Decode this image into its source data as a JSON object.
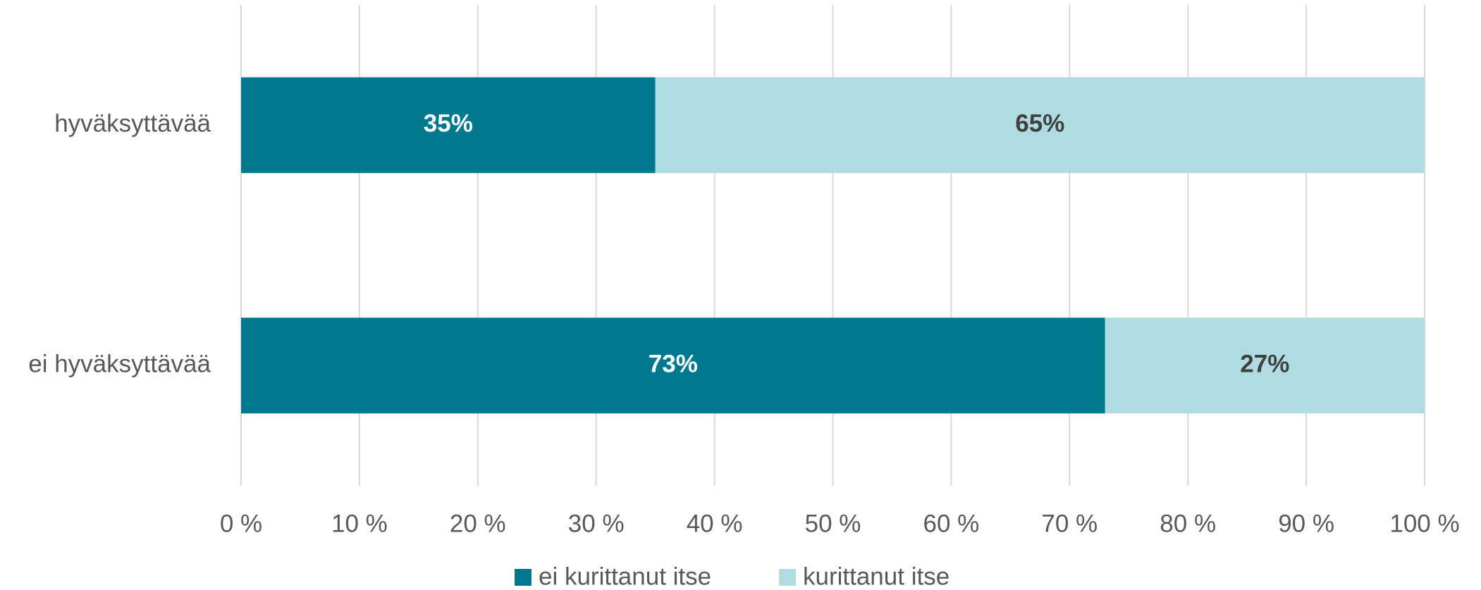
{
  "chart_data": {
    "type": "stacked_barh",
    "categories": [
      "hyväksyttävää",
      "ei hyväksyttävää"
    ],
    "series": [
      {
        "name": "ei kurittanut itse",
        "color": "#00788e",
        "values": [
          35,
          73
        ],
        "value_labels": [
          "35%",
          "73%"
        ]
      },
      {
        "name": "kurittanut itse",
        "color": "#b0dce1",
        "values": [
          65,
          27
        ],
        "value_labels": [
          "65%",
          "27%"
        ]
      }
    ],
    "xlim": [
      0,
      100
    ],
    "xticks": [
      {
        "value": 0,
        "label": "0 %"
      },
      {
        "value": 10,
        "label": "10 %"
      },
      {
        "value": 20,
        "label": "20 %"
      },
      {
        "value": 30,
        "label": "30 %"
      },
      {
        "value": 40,
        "label": "40 %"
      },
      {
        "value": 50,
        "label": "50 %"
      },
      {
        "value": 60,
        "label": "60 %"
      },
      {
        "value": 70,
        "label": "70 %"
      },
      {
        "value": 80,
        "label": "80 %"
      },
      {
        "value": 90,
        "label": "90 %"
      },
      {
        "value": 100,
        "label": "100 %"
      }
    ],
    "grid": true,
    "legend": "bottom"
  }
}
